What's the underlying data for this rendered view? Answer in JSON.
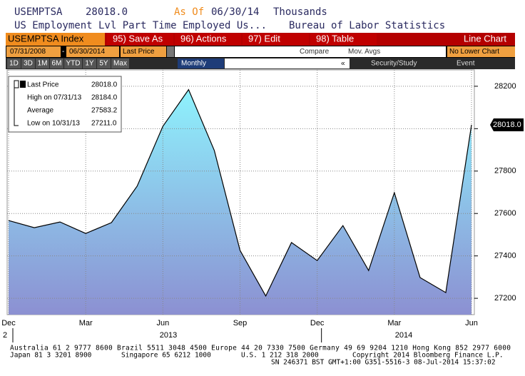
{
  "header": {
    "ticker": "USEMPTSA",
    "value": "28018.0",
    "as_of": "As Of",
    "date": "06/30/14",
    "units": "Thousands",
    "description": "US Employment Lvl Part Time Employed Us...",
    "source": "Bureau of Labor Statistics"
  },
  "toolbar": {
    "index": "USEMPTSA Index",
    "buttons": [
      "95) Save As",
      "96) Actions",
      "97) Edit",
      "98) Table"
    ],
    "chart_type": "Line Chart"
  },
  "range_row": {
    "start": "07/31/2008",
    "dash": "-",
    "end": "06/30/2014",
    "field": "Last Price",
    "compare": "Compare",
    "mov_avgs": "Mov. Avgs",
    "lower": "No Lower Chart"
  },
  "period_row": {
    "periods": [
      "1D",
      "3D",
      "1M",
      "6M",
      "YTD",
      "1Y",
      "5Y",
      "Max"
    ],
    "frequency": "Monthly",
    "collapse": "«",
    "security": "Security/Study",
    "event": "Event"
  },
  "legend": [
    {
      "label": "Last Price",
      "value": "28018.0"
    },
    {
      "label": "High on 07/31/13",
      "value": "28184.0"
    },
    {
      "label": "Average",
      "value": "27583.2"
    },
    {
      "label": "Low on 10/31/13",
      "value": "27211.0"
    }
  ],
  "chart_data": {
    "type": "line",
    "categories": [
      "Dec",
      null,
      null,
      "Mar",
      null,
      null,
      "Jun",
      null,
      null,
      "Sep",
      null,
      null,
      "Dec",
      null,
      null,
      "Mar",
      null,
      null,
      "Jun"
    ],
    "values": [
      27567,
      27533,
      27560,
      27506,
      27557,
      27729,
      28011,
      28184,
      27897,
      27426,
      27211,
      27463,
      27378,
      27543,
      27331,
      27698,
      27298,
      27227,
      28018
    ],
    "last_label": "28018.0",
    "years": [
      "2",
      "2013",
      "2014"
    ],
    "ylim": [
      27123,
      28277
    ],
    "yticks": [
      27200,
      27400,
      27600,
      27800,
      28000,
      28200
    ],
    "grid": true,
    "color": "#000000",
    "fill_top": "#8ef2fd",
    "fill_bottom": "#8c90d2"
  },
  "footer": {
    "line1": "Australia 61 2 9777 8600 Brazil 5511 3048 4500 Europe 44 20 7330 7500 Germany 49 69 9204 1210 Hong Kong 852 2977 6000",
    "line2": [
      "Japan 81 3 3201 8900",
      "Singapore 65 6212 1000",
      "U.S. 1 212 318 2000",
      "Copyright 2014 Bloomberg Finance L.P."
    ],
    "line3": "SN 246371 BST  GMT+1:00 G351-5516-3 08-Jul-2014 15:37:02"
  }
}
